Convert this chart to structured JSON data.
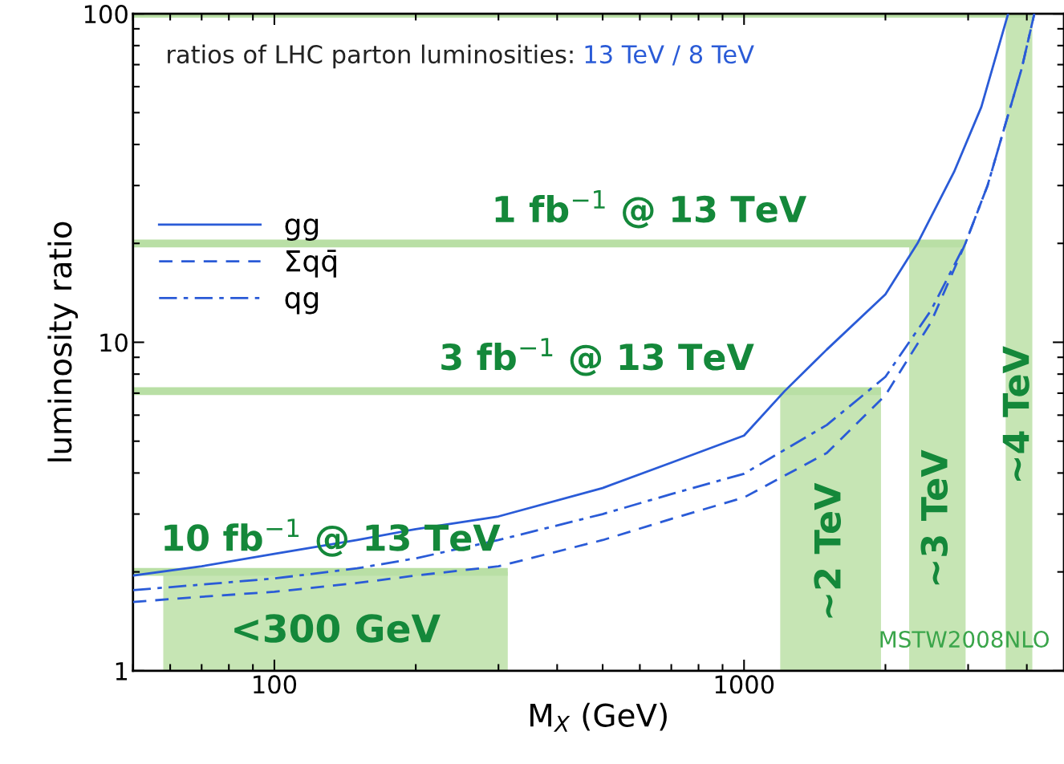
{
  "chart_data": {
    "type": "line",
    "log": "xy",
    "xlabel": "M$_{X}$ (GeV)",
    "ylabel": "luminosity ratio",
    "xlim": [
      50,
      4800
    ],
    "ylim": [
      1,
      100
    ],
    "xticks": [
      100,
      1000
    ],
    "yticks": [
      1,
      10,
      100
    ],
    "grid": false,
    "legend": "left",
    "marker": "none",
    "annotations": [
      "ratios of LHC parton luminosities: ",
      "13 TeV / 8 TeV",
      "MSTW2008NLO"
    ],
    "series": [
      {
        "name": "gg",
        "color": "#2a5bd7",
        "line_style": "solid",
        "x": [
          50,
          70,
          100,
          150,
          200,
          300,
          500,
          700,
          1000,
          1220,
          1500,
          2000,
          2340,
          2800,
          3200,
          3650
        ],
        "values": [
          1.95,
          2.08,
          2.27,
          2.5,
          2.7,
          2.95,
          3.6,
          4.3,
          5.2,
          7.1,
          9.5,
          14,
          20,
          33,
          52,
          100
        ]
      },
      {
        "name": "Σqq̄",
        "color": "#2a5bd7",
        "line_style": "dashed",
        "x": [
          50,
          70,
          100,
          150,
          200,
          300,
          500,
          700,
          1000,
          1500,
          2000,
          2500,
          2960,
          3300,
          3600,
          3900,
          4150
        ],
        "values": [
          1.62,
          1.68,
          1.74,
          1.85,
          1.95,
          2.08,
          2.5,
          2.9,
          3.37,
          4.6,
          6.9,
          11.5,
          20,
          30,
          46,
          68,
          100
        ]
      },
      {
        "name": "qg",
        "color": "#2a5bd7",
        "line_style": "dashdot",
        "x": [
          50,
          70,
          100,
          150,
          200,
          300,
          500,
          700,
          1000,
          1500,
          2000,
          2500,
          2960,
          3300,
          3600,
          3900,
          4150
        ],
        "values": [
          1.76,
          1.83,
          1.91,
          2.05,
          2.2,
          2.5,
          3.0,
          3.45,
          3.98,
          5.6,
          7.85,
          12.5,
          20,
          30,
          46,
          68,
          100
        ]
      }
    ],
    "ref_lines": [
      {
        "axis": "y",
        "value": 2,
        "label": "10 fb$^{−1}$ @ 13 TeV",
        "color": "#b9dfa5"
      },
      {
        "axis": "y",
        "value": 7.1,
        "label": "3 fb$^{−1}$ @ 13 TeV",
        "color": "#b9dfa5"
      },
      {
        "axis": "y",
        "value": 20,
        "label": "1 fb$^{−1}$ @ 13 TeV",
        "color": "#b9dfa5"
      },
      {
        "axis": "y",
        "value": 100,
        "label": null,
        "color": "#b9dfa5"
      }
    ],
    "bands": [
      {
        "axis": "x",
        "from": 58,
        "to": 314,
        "label": "<300 GeV",
        "color": "#c6e5b4"
      },
      {
        "axis": "x",
        "from": 1194,
        "to": 1957,
        "label": "~2 TeV",
        "color": "#c6e5b4"
      },
      {
        "axis": "x",
        "from": 2247,
        "to": 2963,
        "label": "~3 TeV",
        "color": "#c6e5b4"
      },
      {
        "axis": "x",
        "from": 3606,
        "to": 4110,
        "label": "~4 TeV",
        "color": "#c6e5b4"
      }
    ]
  }
}
